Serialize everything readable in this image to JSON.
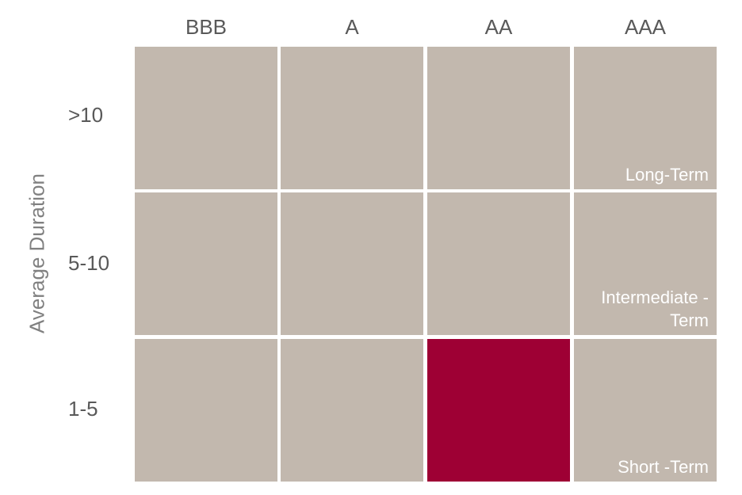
{
  "matrix": {
    "y_axis_title": "Average Duration",
    "columns": [
      "BBB",
      "A",
      "AA",
      "AAA"
    ],
    "rows": [
      ">10",
      "5-10",
      "1-5"
    ],
    "corner_labels": {
      "long": "Long-Term",
      "intermediate": "Intermediate -\nTerm",
      "short": "Short -Term"
    },
    "highlighted_cell": {
      "row": "1-5",
      "column": "AA"
    },
    "colors": {
      "cell": "#c2b8ae",
      "highlight": "#9e0034",
      "axis_text": "#595959",
      "axis_title": "#808080"
    }
  }
}
